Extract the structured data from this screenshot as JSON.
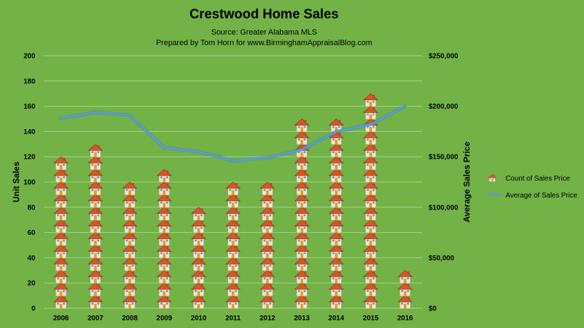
{
  "chart_data": {
    "type": "bar+line",
    "title": "Crestwood Home Sales",
    "subtitle_lines": [
      "Source: Greater Alabama MLS",
      "Prepared by Tom Horn for www.BirminghamAppraisalBlog.com"
    ],
    "categories": [
      "2006",
      "2007",
      "2008",
      "2009",
      "2010",
      "2011",
      "2012",
      "2013",
      "2014",
      "2015",
      "2016"
    ],
    "series": [
      {
        "name": "Count of Sales Price",
        "kind": "pictograph-bar",
        "axis": "left",
        "values": [
          128,
          133,
          102,
          114,
          83,
          101,
          109,
          151,
          152,
          177,
          36
        ]
      },
      {
        "name": "Average of Sales Price",
        "kind": "line",
        "axis": "right",
        "values": [
          188000,
          194000,
          191000,
          159000,
          155000,
          146000,
          149000,
          157000,
          175000,
          182000,
          200000
        ]
      }
    ],
    "ylabel": "Unit Sales",
    "y2label": "Average Sales Price",
    "ylim": [
      0,
      200
    ],
    "y2lim": [
      0,
      250000
    ],
    "yticks": [
      "0",
      "20",
      "40",
      "60",
      "80",
      "100",
      "120",
      "140",
      "160",
      "180",
      "200"
    ],
    "y2ticks": [
      "$0",
      "$50,000",
      "$100,000",
      "$150,000",
      "$200,000",
      "$250,000"
    ],
    "grid": true,
    "legend_position": "right",
    "colors": {
      "background": "#72b246",
      "gridline": "#a9d18e",
      "line": "#5b9bd5",
      "roof": "#d9552b",
      "wall": "#f2e6cf",
      "door": "#e89a2c",
      "window": "#5b9bd5"
    }
  }
}
